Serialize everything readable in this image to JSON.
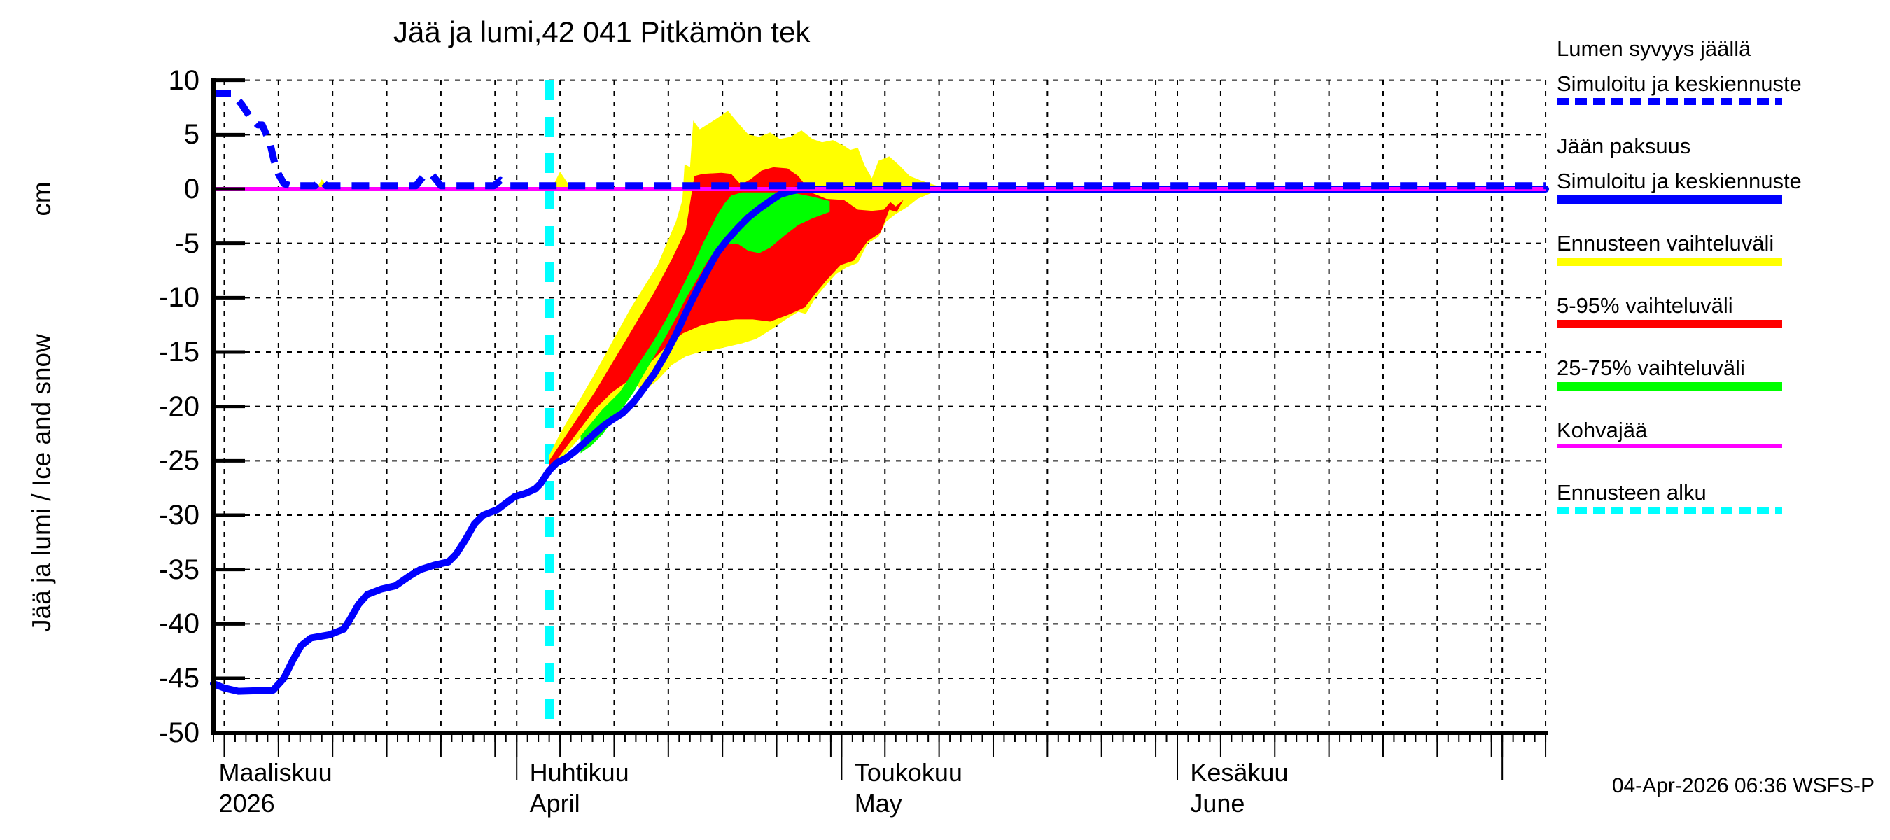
{
  "title": "Jää ja lumi,42 041 Pitkämön tek",
  "footer": {
    "timestamp": "04-Apr-2026 06:36 WSFS-P"
  },
  "y_axis": {
    "label": "Jää ja lumi / Ice and snow",
    "unit": "cm",
    "ticks": [
      10,
      5,
      0,
      -5,
      -10,
      -15,
      -20,
      -25,
      -30,
      -35,
      -40,
      -45,
      -50
    ]
  },
  "x_axis": {
    "months": [
      {
        "fi": "Maaliskuu",
        "en": "2026",
        "label_day": 0.1
      },
      {
        "fi": "Huhtikuu",
        "en": "April",
        "label_day": 28.8
      },
      {
        "fi": "Toukokuu",
        "en": "May",
        "label_day": 58.8
      },
      {
        "fi": "Kesäkuu",
        "en": "June",
        "label_day": 89.8
      }
    ],
    "month_tick_days": [
      28,
      58,
      89,
      119
    ],
    "gridline_days": [
      1,
      6,
      11,
      16,
      21,
      26,
      28,
      32,
      37,
      42,
      47,
      52,
      57,
      58,
      62,
      67,
      72,
      77,
      82,
      87,
      89,
      93,
      98,
      103,
      108,
      113,
      118,
      119,
      123
    ],
    "minor_tick_step": 1
  },
  "colors": {
    "blue": "#0000ff",
    "yellow": "#ffff00",
    "red": "#ff0000",
    "green": "#00ff00",
    "magenta": "#ff00ff",
    "cyan": "#00ffff",
    "grid": "#000000"
  },
  "legend": [
    {
      "lines": [
        "Lumen syvyys jäällä",
        "Simuloitu ja keskiennuste"
      ],
      "color": "#0000ff",
      "style": "dashed",
      "thickness": 10
    },
    {
      "lines": [
        "Jään paksuus",
        "Simuloitu ja keskiennuste"
      ],
      "color": "#0000ff",
      "style": "solid",
      "thickness": 12
    },
    {
      "lines": [
        "Ennusteen vaihteluväli"
      ],
      "color": "#ffff00",
      "style": "solid",
      "thickness": 12
    },
    {
      "lines": [
        "5-95% vaihteluväli"
      ],
      "color": "#ff0000",
      "style": "solid",
      "thickness": 12
    },
    {
      "lines": [
        "25-75% vaihteluväli"
      ],
      "color": "#00ff00",
      "style": "solid",
      "thickness": 12
    },
    {
      "lines": [
        "Kohvajää"
      ],
      "color": "#ff00ff",
      "style": "solid",
      "thickness": 5
    },
    {
      "lines": [
        "Ennusteen alku"
      ],
      "color": "#00ffff",
      "style": "dashed",
      "thickness": 10
    }
  ],
  "chart_data": {
    "type": "line",
    "title": "Jää ja lumi,42 041 Pitkämön tek",
    "x_unit": "days from 2026-03-04 (left edge of plot)",
    "y_unit": "cm",
    "xlim": [
      0,
      123
    ],
    "ylim": [
      -50,
      10
    ],
    "grid": true,
    "legend_position": "outside-right",
    "forecast_start_day": 31,
    "series": [
      {
        "name": "snow_depth_on_ice",
        "legend": "Lumen syvyys jäällä, simuloitu ja keskiennuste",
        "color": "#0000ff",
        "style": "dashed",
        "points": [
          [
            0,
            8.8
          ],
          [
            1.7,
            8.8
          ],
          [
            2.6,
            7.8
          ],
          [
            3.4,
            6.6
          ],
          [
            4.1,
            5.9
          ],
          [
            4.5,
            5.9
          ],
          [
            5.2,
            4.3
          ],
          [
            5.6,
            2.6
          ],
          [
            6,
            1.4
          ],
          [
            6.5,
            0.5
          ],
          [
            7.1,
            0.3
          ],
          [
            9.4,
            0.3
          ],
          [
            9.9,
            0.9
          ],
          [
            10.4,
            0.3
          ],
          [
            18.7,
            0.3
          ],
          [
            19.4,
            1.2
          ],
          [
            20.2,
            1.3
          ],
          [
            21,
            0.3
          ],
          [
            25.9,
            0.3
          ],
          [
            26.5,
            0.8
          ],
          [
            27.3,
            0.3
          ],
          [
            123,
            0.3
          ]
        ]
      },
      {
        "name": "ice_thickness",
        "legend": "Jään paksuus, simuloitu ja keskiennuste",
        "color": "#0000ff",
        "style": "solid",
        "points": [
          [
            0,
            -45.5
          ],
          [
            1,
            -45.9
          ],
          [
            2.3,
            -46.2
          ],
          [
            5.5,
            -46.1
          ],
          [
            6.5,
            -45
          ],
          [
            7.3,
            -43.4
          ],
          [
            8.1,
            -42
          ],
          [
            9,
            -41.3
          ],
          [
            10.7,
            -41
          ],
          [
            12,
            -40.5
          ],
          [
            12.6,
            -39.6
          ],
          [
            13.4,
            -38.2
          ],
          [
            14.2,
            -37.3
          ],
          [
            15.5,
            -36.8
          ],
          [
            16.8,
            -36.5
          ],
          [
            18.1,
            -35.6
          ],
          [
            19.1,
            -35
          ],
          [
            20.4,
            -34.6
          ],
          [
            21.7,
            -34.3
          ],
          [
            22.4,
            -33.6
          ],
          [
            23.3,
            -32.2
          ],
          [
            24.1,
            -30.8
          ],
          [
            24.9,
            -30
          ],
          [
            26.2,
            -29.5
          ],
          [
            27,
            -28.9
          ],
          [
            27.8,
            -28.3
          ],
          [
            28.8,
            -28
          ],
          [
            29.7,
            -27.6
          ],
          [
            30.2,
            -27.1
          ],
          [
            31,
            -25.9
          ],
          [
            31.7,
            -25.2
          ],
          [
            32.5,
            -24.8
          ],
          [
            33.3,
            -24.2
          ],
          [
            34.3,
            -23.3
          ],
          [
            35.2,
            -22.5
          ],
          [
            36,
            -21.8
          ],
          [
            36.7,
            -21.3
          ],
          [
            37.8,
            -20.6
          ],
          [
            38.8,
            -19.6
          ],
          [
            39.7,
            -18.4
          ],
          [
            40.7,
            -17
          ],
          [
            41.7,
            -15.3
          ],
          [
            42.7,
            -13.4
          ],
          [
            43.6,
            -11.4
          ],
          [
            44.6,
            -9.4
          ],
          [
            45.6,
            -7.5
          ],
          [
            46.5,
            -5.9
          ],
          [
            47.5,
            -4.6
          ],
          [
            48.5,
            -3.5
          ],
          [
            49.4,
            -2.6
          ],
          [
            50.4,
            -1.8
          ],
          [
            51.4,
            -1.1
          ],
          [
            52.3,
            -0.5
          ],
          [
            53.3,
            -0.2
          ],
          [
            54.3,
            0
          ],
          [
            123,
            0
          ]
        ]
      },
      {
        "name": "kohvajaa",
        "legend": "Kohvajää",
        "color": "#ff00ff",
        "style": "solid",
        "points": [
          [
            0,
            0
          ],
          [
            123,
            0
          ]
        ]
      }
    ],
    "bands": [
      {
        "name": "forecast_range",
        "legend": "Ennusteen vaihteluväli",
        "color": "#ffff00",
        "upper": [
          [
            31,
            -24.5
          ],
          [
            32,
            -22.5
          ],
          [
            35.2,
            -17
          ],
          [
            38.5,
            -11
          ],
          [
            41,
            -7
          ],
          [
            42.7,
            -3
          ],
          [
            43.3,
            -1
          ],
          [
            43.5,
            2.3
          ],
          [
            44,
            2
          ],
          [
            44.3,
            6.3
          ],
          [
            44.9,
            5.5
          ],
          [
            45.7,
            6
          ],
          [
            46.5,
            6.5
          ],
          [
            47.5,
            7.2
          ],
          [
            48.5,
            6
          ],
          [
            49.4,
            5
          ],
          [
            50.4,
            4.8
          ],
          [
            51.4,
            5.2
          ],
          [
            52.3,
            4.6
          ],
          [
            53.3,
            4.8
          ],
          [
            54.3,
            5.4
          ],
          [
            55.3,
            4.6
          ],
          [
            56.2,
            4.3
          ],
          [
            57.2,
            4.5
          ],
          [
            58.2,
            4
          ],
          [
            58.8,
            3.6
          ],
          [
            59.5,
            3.8
          ],
          [
            60.1,
            2.2
          ],
          [
            60.8,
            1
          ],
          [
            61.4,
            2.6
          ],
          [
            62.4,
            3
          ],
          [
            63.3,
            2.2
          ],
          [
            64.3,
            1.2
          ],
          [
            65.3,
            0.8
          ],
          [
            66.2,
            0.5
          ],
          [
            67.4,
            0.1
          ]
        ],
        "lower": [
          [
            31,
            -26
          ],
          [
            33.3,
            -23.5
          ],
          [
            35.2,
            -21.3
          ],
          [
            37.2,
            -19.6
          ],
          [
            38.5,
            -18.8
          ],
          [
            39.1,
            -18.1
          ],
          [
            39.7,
            -18.6
          ],
          [
            41,
            -17.6
          ],
          [
            42.3,
            -16.2
          ],
          [
            43.6,
            -15.4
          ],
          [
            44.9,
            -15
          ],
          [
            46.2,
            -14.8
          ],
          [
            47.5,
            -14.5
          ],
          [
            48.8,
            -14.2
          ],
          [
            50.1,
            -13.8
          ],
          [
            51.4,
            -13
          ],
          [
            52.7,
            -12.1
          ],
          [
            54,
            -11.3
          ],
          [
            54.7,
            -11.5
          ],
          [
            55.6,
            -10
          ],
          [
            56.6,
            -8.8
          ],
          [
            57.5,
            -7.8
          ],
          [
            58.5,
            -7.2
          ],
          [
            59.5,
            -6.8
          ],
          [
            60.4,
            -5
          ],
          [
            61.4,
            -4.4
          ],
          [
            62.1,
            -3
          ],
          [
            63,
            -2.3
          ],
          [
            64,
            -1.7
          ],
          [
            65,
            -0.9
          ],
          [
            66.2,
            -0.4
          ],
          [
            67.4,
            -0.1
          ]
        ]
      },
      {
        "name": "range_5_95",
        "legend": "5-95% vaihteluväli",
        "color": "#ff0000",
        "upper": [
          [
            31,
            -25
          ],
          [
            35.2,
            -18.7
          ],
          [
            38.5,
            -13.2
          ],
          [
            40.7,
            -9.5
          ],
          [
            42.3,
            -6.5
          ],
          [
            43.6,
            -3.8
          ],
          [
            44.4,
            1.2
          ],
          [
            45.2,
            1.4
          ],
          [
            46.9,
            1.5
          ],
          [
            47.8,
            1.4
          ],
          [
            48.7,
            0.4
          ],
          [
            49.6,
            0.9
          ],
          [
            50.6,
            1.7
          ],
          [
            51.7,
            2
          ],
          [
            53,
            1.9
          ],
          [
            54,
            1.2
          ],
          [
            54.7,
            0.3
          ],
          [
            55.4,
            -0.4
          ],
          [
            56.6,
            -0.9
          ],
          [
            58.2,
            -1
          ],
          [
            59.5,
            -1.9
          ],
          [
            60.8,
            -2
          ],
          [
            61.9,
            -1.9
          ],
          [
            62.5,
            -1.2
          ],
          [
            63,
            -1.6
          ],
          [
            63.7,
            -1
          ]
        ],
        "lower": [
          [
            31,
            -25.8
          ],
          [
            33.3,
            -22.8
          ],
          [
            35.2,
            -20.3
          ],
          [
            36.8,
            -18.7
          ],
          [
            38.5,
            -17.5
          ],
          [
            40.1,
            -16.2
          ],
          [
            41.7,
            -14.6
          ],
          [
            43.3,
            -13.3
          ],
          [
            44.9,
            -12.6
          ],
          [
            46.5,
            -12.2
          ],
          [
            48.2,
            -12
          ],
          [
            49.8,
            -12
          ],
          [
            51.4,
            -12.2
          ],
          [
            53,
            -11.6
          ],
          [
            54.6,
            -10.9
          ],
          [
            55.6,
            -9.6
          ],
          [
            56.6,
            -8.4
          ],
          [
            57.9,
            -7
          ],
          [
            59.1,
            -6.6
          ],
          [
            60.4,
            -4.8
          ],
          [
            61.6,
            -4
          ],
          [
            62.4,
            -1.9
          ],
          [
            63.1,
            -2.1
          ],
          [
            63.7,
            -1
          ]
        ]
      },
      {
        "name": "range_25_75",
        "legend": "25-75% vaihteluväli",
        "color": "#00ff00",
        "upper": [
          [
            33.9,
            -22.7
          ],
          [
            35.9,
            -20.3
          ],
          [
            37.5,
            -18.7
          ],
          [
            39.1,
            -16.3
          ],
          [
            40.5,
            -14.2
          ],
          [
            41.8,
            -12
          ],
          [
            43.1,
            -9.4
          ],
          [
            44.3,
            -7
          ],
          [
            45.2,
            -5
          ],
          [
            45.9,
            -3.6
          ],
          [
            46.5,
            -2.4
          ],
          [
            47.2,
            -1.3
          ],
          [
            47.8,
            -0.6
          ],
          [
            48.8,
            -0.3
          ],
          [
            53.3,
            -0.3
          ],
          [
            55.3,
            -0.7
          ],
          [
            56.9,
            -1.1
          ]
        ],
        "lower": [
          [
            33.9,
            -24.3
          ],
          [
            34.9,
            -23.6
          ],
          [
            35.9,
            -22.6
          ],
          [
            36.8,
            -21.4
          ],
          [
            37.8,
            -20.1
          ],
          [
            38.8,
            -18.7
          ],
          [
            39.7,
            -17.1
          ],
          [
            40.7,
            -15.4
          ],
          [
            41.7,
            -13.7
          ],
          [
            42.7,
            -11.9
          ],
          [
            43.6,
            -10.1
          ],
          [
            44.6,
            -8.4
          ],
          [
            45.6,
            -6.7
          ],
          [
            46.5,
            -5.4
          ],
          [
            47.5,
            -5
          ],
          [
            48.5,
            -5.1
          ],
          [
            49.4,
            -5.7
          ],
          [
            50.4,
            -5.9
          ],
          [
            51.4,
            -5.4
          ],
          [
            52.7,
            -4.3
          ],
          [
            54,
            -3.3
          ],
          [
            55.3,
            -2.7
          ],
          [
            56.9,
            -2.1
          ]
        ]
      }
    ],
    "extra_yellow_patches": [
      [
        [
          9.5,
          0
        ],
        [
          10,
          0.9
        ],
        [
          10.7,
          0
        ]
      ],
      [
        [
          31.2,
          0
        ],
        [
          32,
          1.6
        ],
        [
          32.8,
          0.4
        ],
        [
          33.9,
          0
        ]
      ]
    ],
    "forecast_start_line": {
      "legend": "Ennusteen alku",
      "color": "#00ffff",
      "day": 31
    }
  }
}
